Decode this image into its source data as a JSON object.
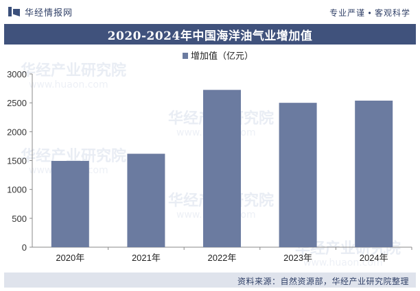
{
  "header": {
    "logo_text": "华经情报网",
    "tagline": "专业严谨 • 客观科学"
  },
  "title": "2020-2024年中国海洋油气业增加值",
  "source": "资料来源：自然资源部，华经产业研究院整理",
  "watermark": {
    "text_cn": "华经产业研究院",
    "text_en": "www.huaon.com"
  },
  "colors": {
    "bar": "#6b7ba0",
    "title_band": "#40527c",
    "axis": "#888888"
  },
  "chart_data": {
    "type": "bar",
    "title": "2020-2024年中国海洋油气业增加值",
    "categories": [
      "2020年",
      "2021年",
      "2022年",
      "2023年",
      "2024年"
    ],
    "series": [
      {
        "name": "增加值（亿元）",
        "values": [
          1494,
          1618,
          2724,
          2500,
          2538
        ]
      }
    ],
    "ylim": [
      0,
      3000
    ],
    "yticks": [
      0,
      500,
      1000,
      1500,
      2000,
      2500,
      3000
    ],
    "grid": false,
    "legend_position": "top-center"
  }
}
